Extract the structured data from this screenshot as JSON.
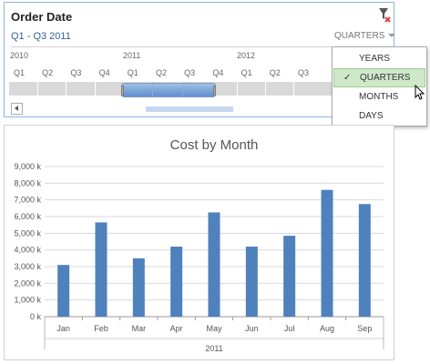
{
  "timeline": {
    "title": "Order Date",
    "range_text": "Q1 - Q3 2011",
    "level_label": "QUARTERS",
    "years": [
      "2010",
      "2011",
      "2012"
    ],
    "quarters": [
      "Q1",
      "Q2",
      "Q3",
      "Q4",
      "Q1",
      "Q2",
      "Q3",
      "Q4",
      "Q1",
      "Q2",
      "Q3"
    ],
    "selected_range": "Q1 - Q3 2011",
    "icons": {
      "clear_filter": "clear-filter-icon",
      "scroll_left": "scroll-left-icon"
    }
  },
  "dropdown": {
    "items": [
      {
        "label": "YEARS",
        "selected": false
      },
      {
        "label": "QUARTERS",
        "selected": true
      },
      {
        "label": "MONTHS",
        "selected": false
      },
      {
        "label": "DAYS",
        "selected": false
      }
    ],
    "check_glyph": "✓"
  },
  "colors": {
    "bar": "#4f81bd",
    "accent_text": "#2f5f99",
    "selected_menu": "#cfe8c9"
  },
  "chart_data": {
    "type": "bar",
    "title": "Cost by Month",
    "categories": [
      "Jan",
      "Feb",
      "Mar",
      "Apr",
      "May",
      "Jun",
      "Jul",
      "Aug",
      "Sep"
    ],
    "values": [
      3100,
      5650,
      3500,
      4200,
      6250,
      4200,
      4850,
      7600,
      6750
    ],
    "xlabel": "2011",
    "ylabel": "",
    "ylim": [
      0,
      9000
    ],
    "yticks": [
      0,
      1000,
      2000,
      3000,
      4000,
      5000,
      6000,
      7000,
      8000,
      9000
    ],
    "ytick_labels": [
      "0 k",
      "1,000 k",
      "2,000 k",
      "3,000 k",
      "4,000 k",
      "5,000 k",
      "6,000 k",
      "7,000 k",
      "8,000 k",
      "9,000 k"
    ],
    "grid": true,
    "legend": false
  }
}
